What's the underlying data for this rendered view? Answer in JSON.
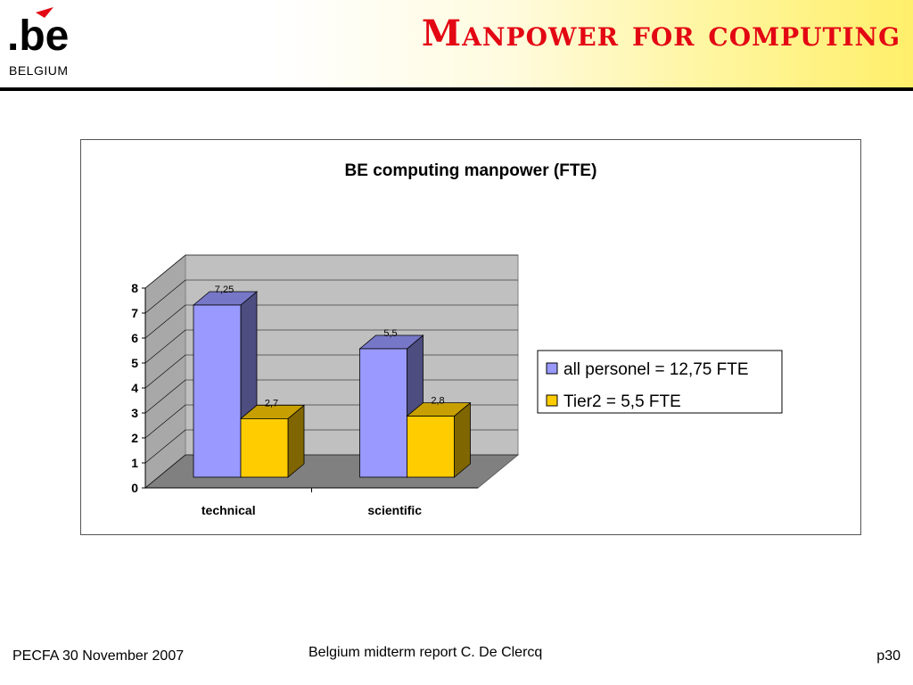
{
  "header": {
    "title": "Manpower for computing",
    "logo_text": ".be",
    "logo_subtext": "BELGIUM",
    "title_color": "#e30613"
  },
  "footer": {
    "left": "PECFA 30 November 2007",
    "center": "Belgium midterm report C. De Clercq",
    "right": "p30"
  },
  "chart_data": {
    "type": "bar",
    "style": "3d-clustered-column",
    "title": "BE computing manpower (FTE)",
    "xlabel": "",
    "ylabel": "",
    "categories": [
      "technical",
      "scientific"
    ],
    "series": [
      {
        "name": "all personel = 12,75 FTE",
        "values": [
          7.25,
          5.5
        ],
        "labels": [
          "7,25",
          "5,5"
        ],
        "color": "#9999ff"
      },
      {
        "name": "Tier2 = 5,5 FTE",
        "values": [
          2.7,
          2.8
        ],
        "labels": [
          "2,7",
          "2,8"
        ],
        "color": "#ffcc00"
      }
    ],
    "ylim": [
      0,
      8
    ],
    "yticks": [
      "0",
      "1",
      "2",
      "3",
      "4",
      "5",
      "6",
      "7",
      "8"
    ],
    "grid": true,
    "legend_position": "right"
  }
}
